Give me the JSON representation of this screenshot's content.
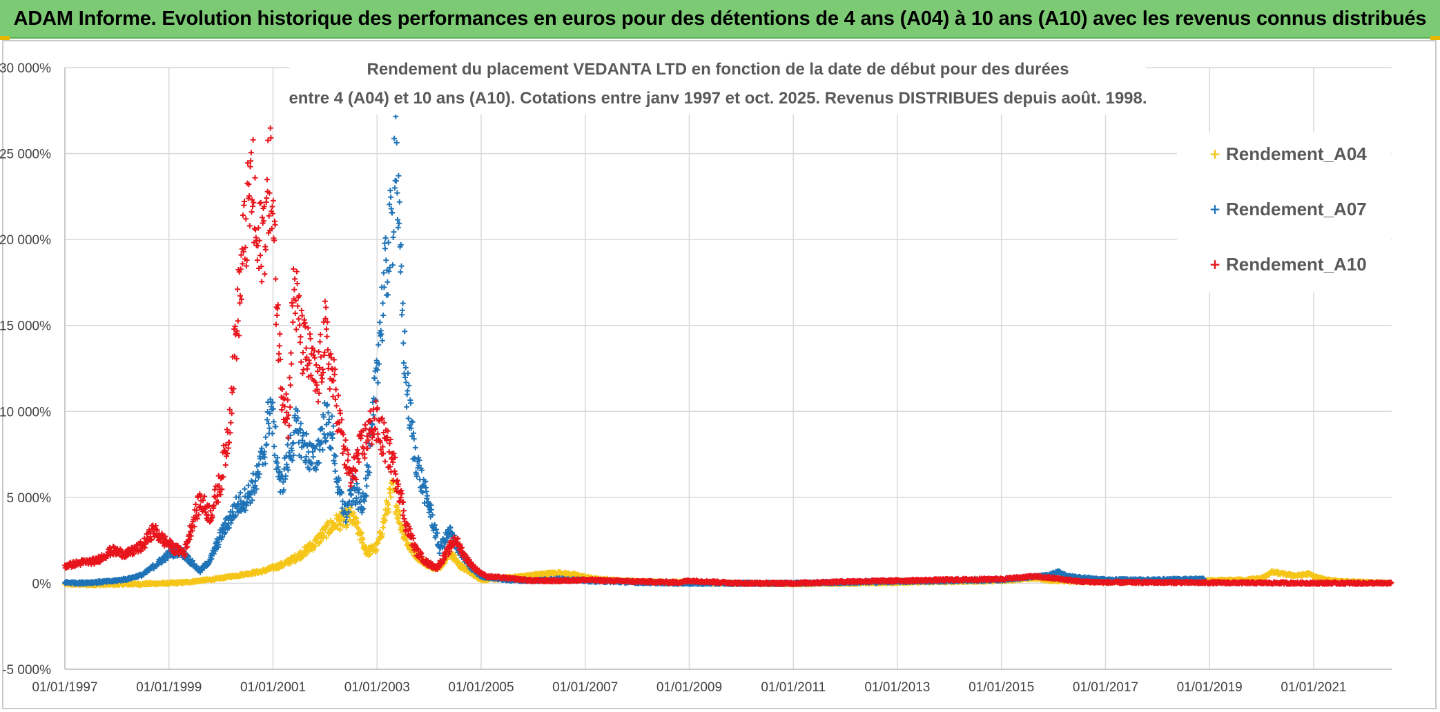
{
  "banner": {
    "title": "ADAM Informe. Evolution historique des performances en euros pour des détentions de 4 ans (A04) à 10 ans (A10) avec les revenus connus distribués"
  },
  "colors": {
    "banner_bg": "#7ccb74",
    "A04": "#f5c518",
    "A07": "#1f73b7",
    "A10": "#e8141c",
    "grid": "#d9d9d9"
  },
  "chart_data": {
    "type": "scatter",
    "title_line1": "Rendement du placement VEDANTA LTD en fonction de la date de début pour des durées",
    "title_line2": "entre 4 (A04) et 10 ans (A10). Cotations entre janv 1997 et oct. 2025. Revenus DISTRIBUES depuis août. 1998.",
    "ylim": [
      -5000,
      30000
    ],
    "xlim": [
      1997.0,
      2022.5
    ],
    "y_ticks": [
      {
        "value": 30000,
        "label": "30 000%"
      },
      {
        "value": 25000,
        "label": "25 000%"
      },
      {
        "value": 20000,
        "label": "20 000%"
      },
      {
        "value": 15000,
        "label": "15 000%"
      },
      {
        "value": 10000,
        "label": "10 000%"
      },
      {
        "value": 5000,
        "label": "5 000%"
      },
      {
        "value": 0,
        "label": "0%"
      },
      {
        "value": -5000,
        "label": "-5 000%"
      }
    ],
    "x_ticks": [
      {
        "value": 1997,
        "label": "01/01/1997"
      },
      {
        "value": 1999,
        "label": "01/01/1999"
      },
      {
        "value": 2001,
        "label": "01/01/2001"
      },
      {
        "value": 2003,
        "label": "01/01/2003"
      },
      {
        "value": 2005,
        "label": "01/01/2005"
      },
      {
        "value": 2007,
        "label": "01/01/2007"
      },
      {
        "value": 2009,
        "label": "01/01/2009"
      },
      {
        "value": 2011,
        "label": "01/01/2011"
      },
      {
        "value": 2013,
        "label": "01/01/2013"
      },
      {
        "value": 2015,
        "label": "01/01/2015"
      },
      {
        "value": 2017,
        "label": "01/01/2017"
      },
      {
        "value": 2019,
        "label": "01/01/2019"
      },
      {
        "value": 2021,
        "label": "01/01/2021"
      }
    ],
    "legend_position": "top-right",
    "series": [
      {
        "name": "Rendement_A04",
        "key": "A04",
        "points": [
          [
            1997.0,
            -50
          ],
          [
            1997.5,
            -80
          ],
          [
            1998.0,
            -60
          ],
          [
            1998.5,
            -40
          ],
          [
            1999.0,
            0
          ],
          [
            1999.3,
            50
          ],
          [
            1999.6,
            150
          ],
          [
            1999.9,
            250
          ],
          [
            2000.2,
            400
          ],
          [
            2000.5,
            550
          ],
          [
            2000.8,
            700
          ],
          [
            2001.0,
            900
          ],
          [
            2001.2,
            1100
          ],
          [
            2001.5,
            1600
          ],
          [
            2001.8,
            2300
          ],
          [
            2002.0,
            3000
          ],
          [
            2002.2,
            3500
          ],
          [
            2002.5,
            3900
          ],
          [
            2002.6,
            3400
          ],
          [
            2002.8,
            1800
          ],
          [
            2003.0,
            2100
          ],
          [
            2003.1,
            3200
          ],
          [
            2003.2,
            4500
          ],
          [
            2003.3,
            5500
          ],
          [
            2003.45,
            3500
          ],
          [
            2003.6,
            2200
          ],
          [
            2003.8,
            1500
          ],
          [
            2004.0,
            1000
          ],
          [
            2004.2,
            900
          ],
          [
            2004.4,
            1800
          ],
          [
            2004.6,
            1000
          ],
          [
            2004.8,
            600
          ],
          [
            2005.0,
            200
          ],
          [
            2005.3,
            250
          ],
          [
            2005.6,
            350
          ],
          [
            2005.9,
            450
          ],
          [
            2006.2,
            550
          ],
          [
            2006.5,
            600
          ],
          [
            2006.8,
            500
          ],
          [
            2007.2,
            250
          ],
          [
            2008.0,
            100
          ],
          [
            2009.0,
            50
          ],
          [
            2010.0,
            0
          ],
          [
            2011.0,
            -30
          ],
          [
            2012.0,
            0
          ],
          [
            2013.0,
            50
          ],
          [
            2014.0,
            100
          ],
          [
            2015.0,
            150
          ],
          [
            2015.6,
            300
          ],
          [
            2016.0,
            150
          ],
          [
            2017.0,
            80
          ],
          [
            2018.0,
            100
          ],
          [
            2019.0,
            150
          ],
          [
            2019.7,
            200
          ],
          [
            2020.0,
            300
          ],
          [
            2020.2,
            650
          ],
          [
            2020.5,
            500
          ],
          [
            2020.7,
            450
          ],
          [
            2020.9,
            550
          ],
          [
            2021.1,
            300
          ],
          [
            2021.5,
            100
          ],
          [
            2022.0,
            50
          ],
          [
            2022.5,
            0
          ]
        ]
      },
      {
        "name": "Rendement_A07",
        "key": "A07",
        "points": [
          [
            1997.0,
            50
          ],
          [
            1997.3,
            20
          ],
          [
            1997.6,
            60
          ],
          [
            1997.9,
            120
          ],
          [
            1998.2,
            250
          ],
          [
            1998.5,
            500
          ],
          [
            1998.8,
            1200
          ],
          [
            1999.0,
            1700
          ],
          [
            1999.2,
            1900
          ],
          [
            1999.35,
            1500
          ],
          [
            1999.5,
            1000
          ],
          [
            1999.6,
            700
          ],
          [
            1999.8,
            1400
          ],
          [
            2000.0,
            2800
          ],
          [
            2000.3,
            4500
          ],
          [
            2000.5,
            5000
          ],
          [
            2000.7,
            6100
          ],
          [
            2000.85,
            8000
          ],
          [
            2000.95,
            10500
          ],
          [
            2001.05,
            8000
          ],
          [
            2001.15,
            5500
          ],
          [
            2001.3,
            7500
          ],
          [
            2001.45,
            9000
          ],
          [
            2001.6,
            8000
          ],
          [
            2001.8,
            7000
          ],
          [
            2002.0,
            9500
          ],
          [
            2002.15,
            8500
          ],
          [
            2002.25,
            5500
          ],
          [
            2002.4,
            4000
          ],
          [
            2002.55,
            5500
          ],
          [
            2002.7,
            4500
          ],
          [
            2002.8,
            6000
          ],
          [
            2002.9,
            8500
          ],
          [
            2003.0,
            13000
          ],
          [
            2003.1,
            16000
          ],
          [
            2003.2,
            19000
          ],
          [
            2003.3,
            21000
          ],
          [
            2003.35,
            26800
          ],
          [
            2003.45,
            18000
          ],
          [
            2003.55,
            12000
          ],
          [
            2003.7,
            8000
          ],
          [
            2003.85,
            6000
          ],
          [
            2004.0,
            4500
          ],
          [
            2004.2,
            2000
          ],
          [
            2004.4,
            3000
          ],
          [
            2004.6,
            1800
          ],
          [
            2004.8,
            900
          ],
          [
            2005.0,
            400
          ],
          [
            2005.5,
            200
          ],
          [
            2006.0,
            150
          ],
          [
            2006.5,
            250
          ],
          [
            2007.0,
            150
          ],
          [
            2008.0,
            50
          ],
          [
            2009.0,
            0
          ],
          [
            2010.0,
            0
          ],
          [
            2011.0,
            0
          ],
          [
            2012.0,
            50
          ],
          [
            2013.0,
            100
          ],
          [
            2014.0,
            150
          ],
          [
            2015.0,
            200
          ],
          [
            2015.5,
            350
          ],
          [
            2015.9,
            450
          ],
          [
            2016.1,
            650
          ],
          [
            2016.3,
            400
          ],
          [
            2017.0,
            200
          ],
          [
            2018.0,
            200
          ],
          [
            2018.9,
            250
          ]
        ]
      },
      {
        "name": "Rendement_A10",
        "key": "A10",
        "points": [
          [
            1997.0,
            1000
          ],
          [
            1997.3,
            1200
          ],
          [
            1997.6,
            1300
          ],
          [
            1997.9,
            1900
          ],
          [
            1998.2,
            1700
          ],
          [
            1998.5,
            2200
          ],
          [
            1998.7,
            3100
          ],
          [
            1998.9,
            2500
          ],
          [
            1999.1,
            2000
          ],
          [
            1999.3,
            1800
          ],
          [
            1999.45,
            3500
          ],
          [
            1999.6,
            4800
          ],
          [
            1999.8,
            4000
          ],
          [
            2000.0,
            6000
          ],
          [
            2000.15,
            9000
          ],
          [
            2000.3,
            15000
          ],
          [
            2000.45,
            20000
          ],
          [
            2000.6,
            23500
          ],
          [
            2000.7,
            19000
          ],
          [
            2000.85,
            21000
          ],
          [
            2000.95,
            24000
          ],
          [
            2001.05,
            18000
          ],
          [
            2001.15,
            12000
          ],
          [
            2001.3,
            9500
          ],
          [
            2001.4,
            17500
          ],
          [
            2001.55,
            14000
          ],
          [
            2001.7,
            13000
          ],
          [
            2001.85,
            11500
          ],
          [
            2002.0,
            14500
          ],
          [
            2002.2,
            11000
          ],
          [
            2002.35,
            8000
          ],
          [
            2002.5,
            6000
          ],
          [
            2002.65,
            7500
          ],
          [
            2002.8,
            8500
          ],
          [
            2002.95,
            9500
          ],
          [
            2003.1,
            8500
          ],
          [
            2003.25,
            7500
          ],
          [
            2003.4,
            6000
          ],
          [
            2003.55,
            3500
          ],
          [
            2003.75,
            1900
          ],
          [
            2003.95,
            1200
          ],
          [
            2004.15,
            900
          ],
          [
            2004.35,
            1800
          ],
          [
            2004.5,
            2600
          ],
          [
            2004.7,
            1500
          ],
          [
            2004.9,
            800
          ],
          [
            2005.1,
            400
          ],
          [
            2005.5,
            300
          ],
          [
            2006.0,
            150
          ],
          [
            2006.5,
            150
          ],
          [
            2007.0,
            200
          ],
          [
            2007.5,
            150
          ],
          [
            2008.0,
            100
          ],
          [
            2008.8,
            50
          ],
          [
            2009.0,
            150
          ],
          [
            2010.0,
            0
          ],
          [
            2011.0,
            0
          ],
          [
            2012.0,
            100
          ],
          [
            2013.0,
            150
          ],
          [
            2014.0,
            200
          ],
          [
            2015.0,
            250
          ],
          [
            2015.6,
            400
          ],
          [
            2016.0,
            300
          ],
          [
            2016.5,
            100
          ],
          [
            2017.0,
            50
          ],
          [
            2018.0,
            50
          ],
          [
            2019.0,
            30
          ],
          [
            2020.0,
            20
          ],
          [
            2021.0,
            10
          ],
          [
            2022.5,
            0
          ]
        ]
      }
    ]
  }
}
